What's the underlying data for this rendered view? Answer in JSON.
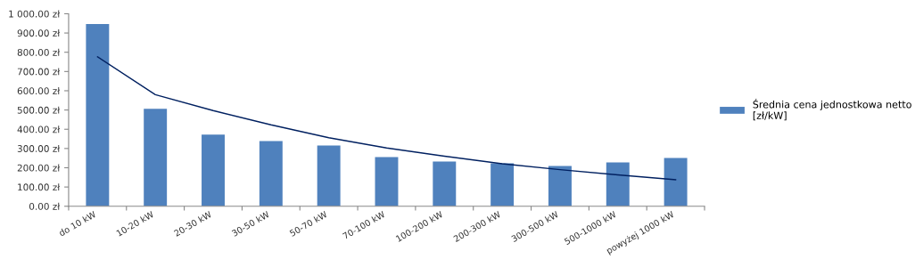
{
  "chart_data": {
    "type": "bar",
    "categories": [
      "do 10 kW",
      "10-20 kW",
      "20-30 kW",
      "30-50 kW",
      "50-70 kW",
      "70-100 kW",
      "100-200 kW",
      "200-300 kW",
      "300-500 kW",
      "500-1000 kW",
      "powyżej 1000 kW"
    ],
    "series": [
      {
        "name": "Średnia cena jednostkowa netto [zł/kW]",
        "color": "#4f81bd",
        "values": [
          947,
          506,
          372,
          339,
          316,
          255,
          232,
          223,
          209,
          228,
          251
        ]
      },
      {
        "type": "line",
        "color": "#002060",
        "values": [
          776,
          580,
          497,
          423,
          356,
          303,
          260,
          221,
          190,
          163,
          138
        ]
      }
    ],
    "ylim": [
      0,
      1000
    ],
    "yticks": [
      {
        "value": 0,
        "label": "0.00 zł"
      },
      {
        "value": 100,
        "label": "100.00 zł"
      },
      {
        "value": 200,
        "label": "200.00 zł"
      },
      {
        "value": 300,
        "label": "300.00 zł"
      },
      {
        "value": 400,
        "label": "400.00 zł"
      },
      {
        "value": 500,
        "label": "500.00 zł"
      },
      {
        "value": 600,
        "label": "600.00 zł"
      },
      {
        "value": 700,
        "label": "700.00 zł"
      },
      {
        "value": 800,
        "label": "800.00 zł"
      },
      {
        "value": 900,
        "label": "900.00 zł"
      },
      {
        "value": 1000,
        "label": "1 000.00 zł"
      }
    ],
    "grid": false,
    "legend": "right",
    "marker": "none"
  }
}
